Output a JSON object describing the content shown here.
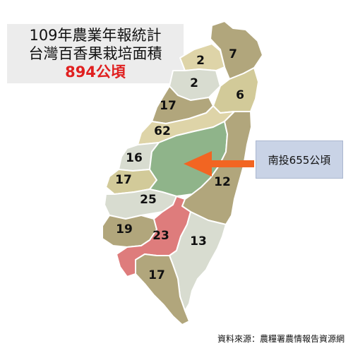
{
  "title": {
    "line1": "109年農業年報統計",
    "line2": "台灣百香果栽培面積",
    "total": "894公頃"
  },
  "regions": [
    {
      "id": "keelung-ne",
      "value": "7",
      "color": "#b1a67c"
    },
    {
      "id": "taoyuan",
      "value": "2",
      "color": "#ded4a8"
    },
    {
      "id": "hsinchu",
      "value": "2",
      "color": "#d8dcd0"
    },
    {
      "id": "yilan",
      "value": "6",
      "color": "#d2ca99"
    },
    {
      "id": "miaoli",
      "value": "17",
      "color": "#b1a67c"
    },
    {
      "id": "taichung",
      "value": "62",
      "color": "#ded4a8"
    },
    {
      "id": "changhua",
      "value": "16",
      "color": "#d8dcd0"
    },
    {
      "id": "yunlin",
      "value": "17",
      "color": "#d2ca99"
    },
    {
      "id": "nantou",
      "value": "655",
      "color": "#8fb48a"
    },
    {
      "id": "hualien",
      "value": "12",
      "color": "#b1a67c"
    },
    {
      "id": "chiayi",
      "value": "25",
      "color": "#d8dcd0"
    },
    {
      "id": "tainan",
      "value": "19",
      "color": "#b1a67c"
    },
    {
      "id": "kaohsiung",
      "value": "23",
      "color": "#de7c7c"
    },
    {
      "id": "taitung",
      "value": "13",
      "color": "#d8dcd0"
    },
    {
      "id": "pingtung",
      "value": "17",
      "color": "#b1a67c"
    }
  ],
  "callout": {
    "text": "南投655公頃",
    "arrow_color": "#f26522"
  },
  "source": "資料來源：農糧署農情報告資源網"
}
